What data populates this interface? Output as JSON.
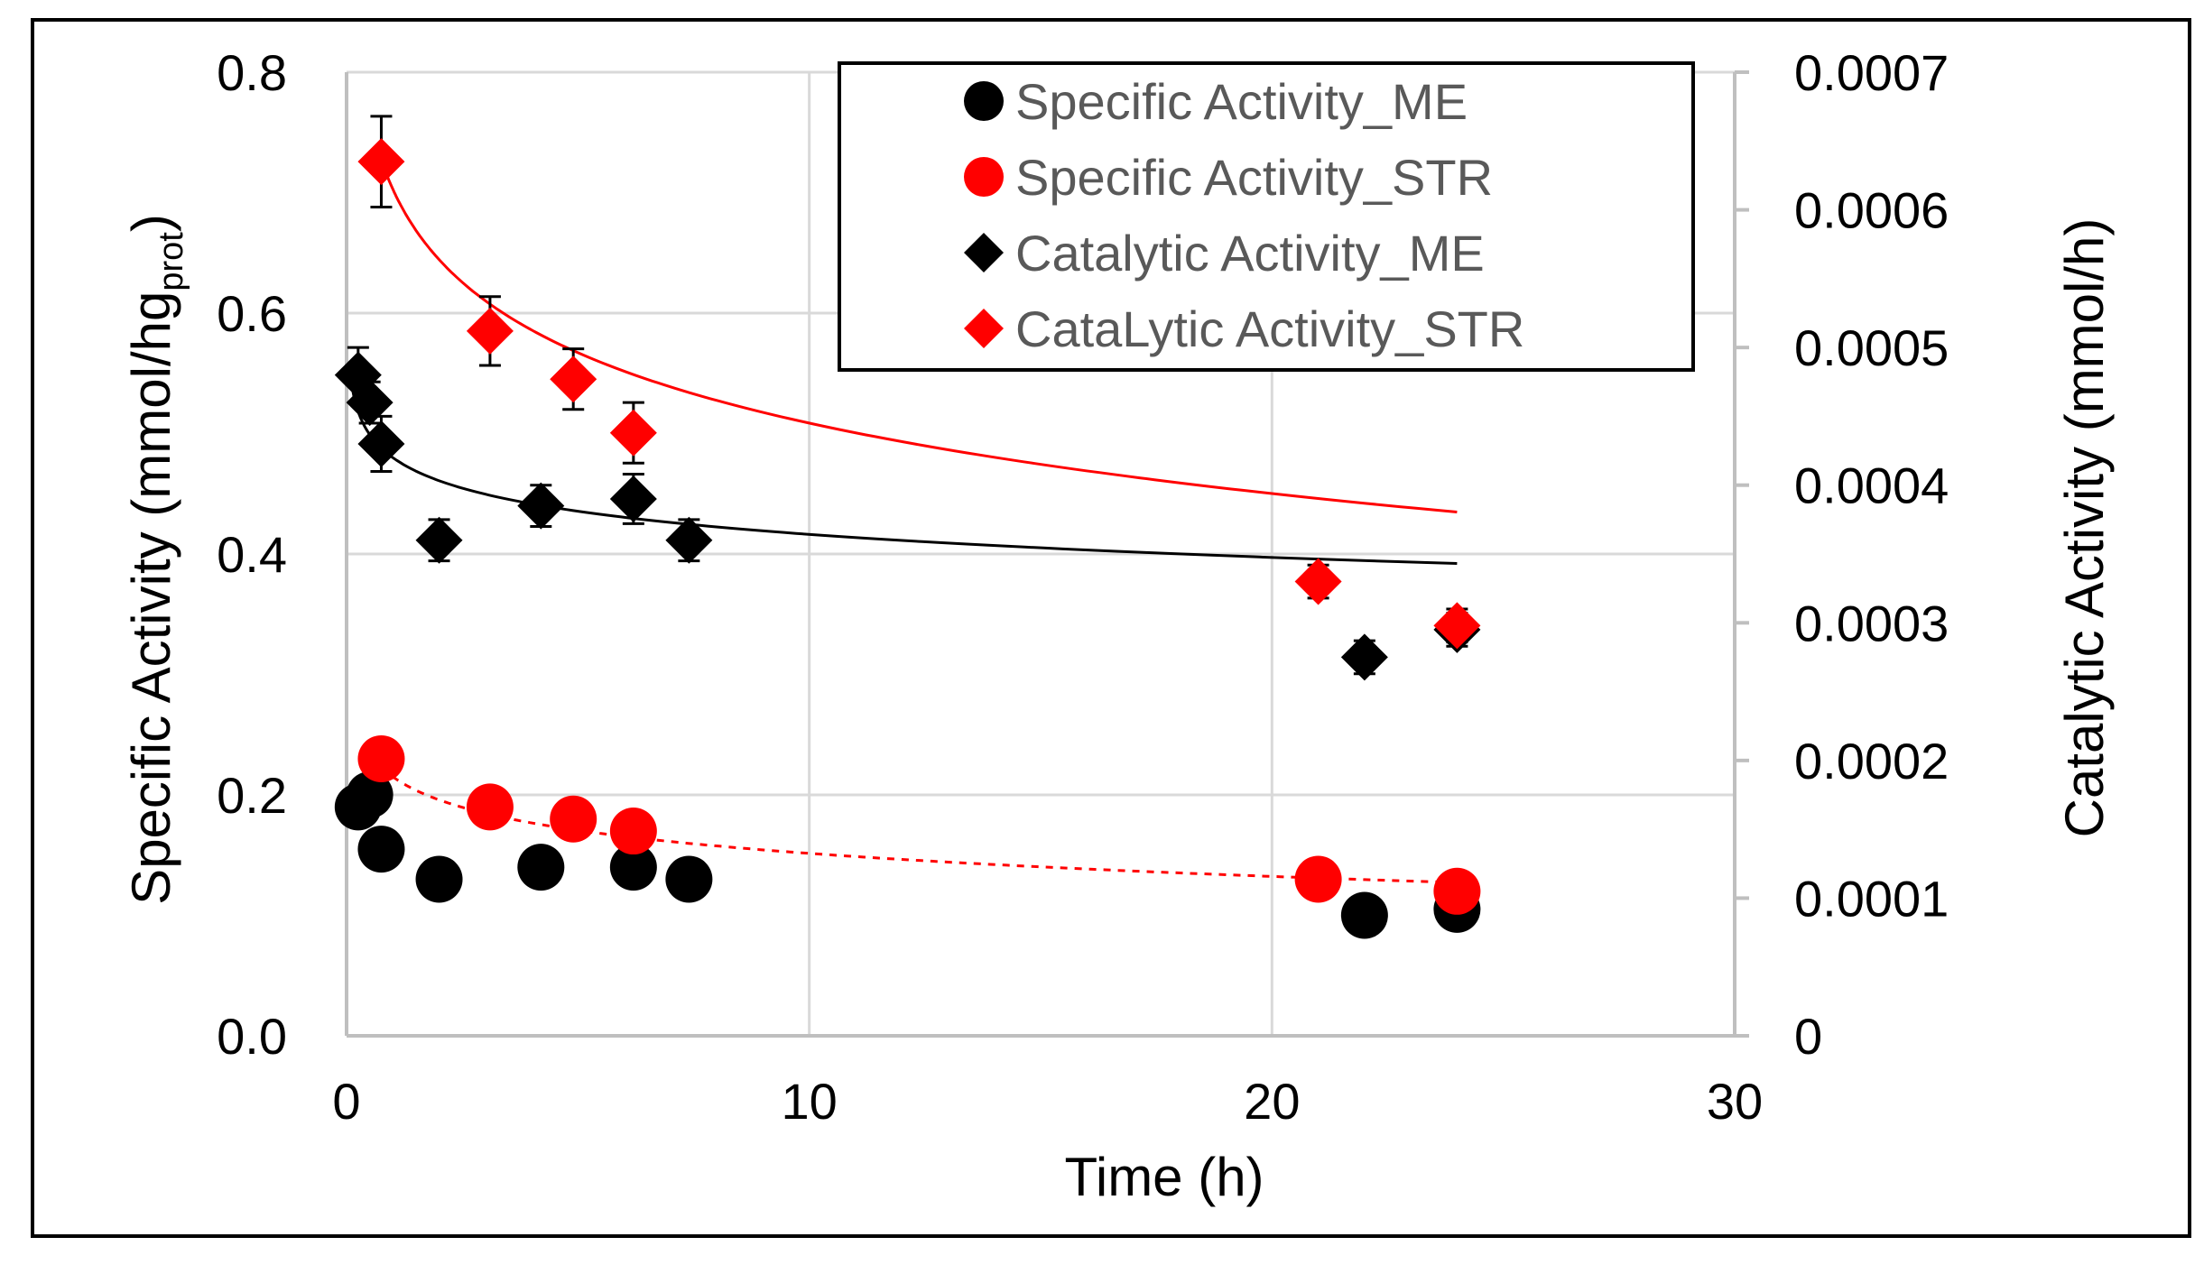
{
  "chart_data": {
    "type": "scatter",
    "xlabel": "Time (h)",
    "ylabel_left_main": "Specific Activity (mmol/hg",
    "ylabel_left_sub": "prot",
    "ylabel_left_close": ")",
    "ylabel_right": "Catalytic Activity (mmol/h)",
    "xlim": [
      0,
      30
    ],
    "ylim_left": [
      0,
      0.8
    ],
    "ylim_right": [
      0,
      0.0007
    ],
    "x_ticks": [
      "0",
      "10",
      "20",
      "30"
    ],
    "x_tick_values": [
      0,
      10,
      20,
      30
    ],
    "y_left_ticks": [
      "0.0",
      "0.2",
      "0.4",
      "0.6",
      "0.8"
    ],
    "y_left_tick_values": [
      0,
      0.2,
      0.4,
      0.6,
      0.8
    ],
    "y_right_ticks": [
      "0",
      "0.0001",
      "0.0002",
      "0.0003",
      "0.0004",
      "0.0005",
      "0.0006",
      "0.0007"
    ],
    "y_right_tick_values": [
      0,
      0.0001,
      0.0002,
      0.0003,
      0.0004,
      0.0005,
      0.0006,
      0.0007
    ],
    "legend_position": "top-right",
    "legend": [
      {
        "label": "Specific Activity_ME",
        "marker": "circle",
        "color": "#000000"
      },
      {
        "label": "Specific Activity_STR",
        "marker": "circle",
        "color": "#ff0000"
      },
      {
        "label": "Catalytic Activity_ME",
        "marker": "diamond",
        "color": "#000000"
      },
      {
        "label": "CataLytic Activity_STR",
        "marker": "diamond",
        "color": "#ff0000"
      }
    ],
    "series": [
      {
        "name": "Specific Activity_ME",
        "axis": "left",
        "marker": "circle",
        "color": "#000000",
        "x": [
          0.25,
          0.5,
          0.75,
          2,
          4.2,
          6.2,
          7.4,
          22,
          24
        ],
        "y": [
          0.19,
          0.2,
          0.155,
          0.13,
          0.14,
          0.14,
          0.13,
          0.1,
          0.105
        ]
      },
      {
        "name": "Specific Activity_STR",
        "axis": "left",
        "marker": "circle",
        "color": "#ff0000",
        "x": [
          0.75,
          3.1,
          4.9,
          6.2,
          21,
          24
        ],
        "y": [
          0.23,
          0.19,
          0.18,
          0.17,
          0.13,
          0.12
        ],
        "fit": "dashed"
      },
      {
        "name": "Catalytic Activity_ME",
        "axis": "right",
        "marker": "diamond",
        "color": "#000000",
        "x": [
          0.25,
          0.5,
          0.75,
          2,
          4.2,
          6.2,
          7.4,
          22,
          24
        ],
        "y": [
          0.00048,
          0.00046,
          0.00043,
          0.00036,
          0.000385,
          0.00039,
          0.00036,
          0.000275,
          0.000295
        ],
        "err": [
          2e-05,
          1.5e-05,
          2e-05,
          1.5e-05,
          1.5e-05,
          1.8e-05,
          1.5e-05,
          1.2e-05,
          1.2e-05
        ],
        "fit": "solid"
      },
      {
        "name": "CataLytic Activity_STR",
        "axis": "right",
        "marker": "diamond",
        "color": "#ff0000",
        "x": [
          0.75,
          3.1,
          4.9,
          6.2,
          21,
          24
        ],
        "y": [
          0.000635,
          0.000512,
          0.000477,
          0.000438,
          0.00033,
          0.000298
        ],
        "err": [
          3.3e-05,
          2.5e-05,
          2.2e-05,
          2.2e-05,
          1.2e-05,
          1.2e-05
        ],
        "fit": "solid"
      }
    ],
    "fits": [
      {
        "name": "ME catalytic fit",
        "axis": "right",
        "color": "#000000",
        "dash": false,
        "x_range": [
          0.1,
          24
        ],
        "a": 0.00042,
        "b": -2.42e-05
      },
      {
        "name": "STR catalytic fit",
        "axis": "right",
        "color": "#ff0000",
        "dash": false,
        "x_range": [
          0.7,
          24
        ],
        "a": 0.000615,
        "b": -7.38e-05
      },
      {
        "name": "STR specific fit",
        "axis": "left",
        "color": "#ff0000",
        "dash": true,
        "x_range": [
          0.75,
          24
        ],
        "a": 0.215,
        "b": -0.0276
      }
    ]
  }
}
